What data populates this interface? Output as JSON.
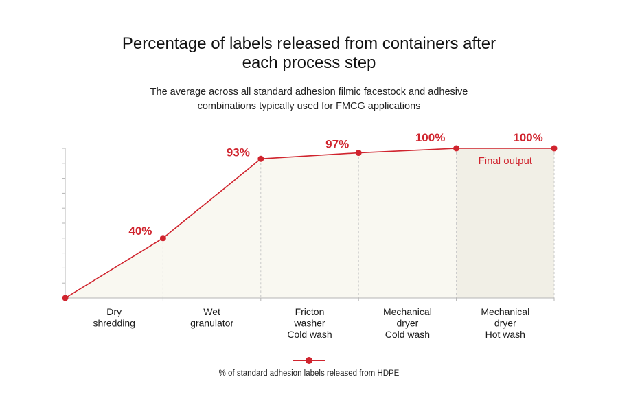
{
  "header": {
    "title_lines": [
      "Percentage of labels released from containers after",
      "each process step"
    ],
    "subtitle_lines": [
      "The average across all standard adhesion filmic facestock and adhesive",
      "combinations typically used for FMCG applications"
    ]
  },
  "colors": {
    "series": "#d0242e",
    "area": "#f9f8f1",
    "final_band": "#f1efe6",
    "axis": "#b5b5b5",
    "divider": "#c8c8c8"
  },
  "chart_data": {
    "type": "line",
    "title": "Percentage of labels released from containers after each process step",
    "subtitle": "The average across all standard adhesion filmic facestock and adhesive combinations typically used for FMCG applications",
    "ylim": [
      0,
      100
    ],
    "y_ticks": 10,
    "area_fill": true,
    "categories": [
      [
        "Dry",
        "shredding"
      ],
      [
        "Wet",
        "granulator"
      ],
      [
        "Fricton",
        "washer",
        "Cold wash"
      ],
      [
        "Mechanical",
        "dryer",
        "Cold wash"
      ],
      [
        "Mechanical",
        "dryer",
        "Hot wash"
      ]
    ],
    "x": [
      0,
      1,
      2,
      3,
      4,
      5
    ],
    "series": [
      {
        "name": "% of standard adhesion labels released from HDPE",
        "values": [
          0,
          40,
          93,
          97,
          100,
          100
        ],
        "data_labels": [
          "",
          "40%",
          "93%",
          "97%",
          "100%",
          "100%"
        ]
      }
    ],
    "highlight": {
      "from_x": 4,
      "to_x": 5,
      "label": "Final output"
    },
    "legend": "bottom-center"
  }
}
